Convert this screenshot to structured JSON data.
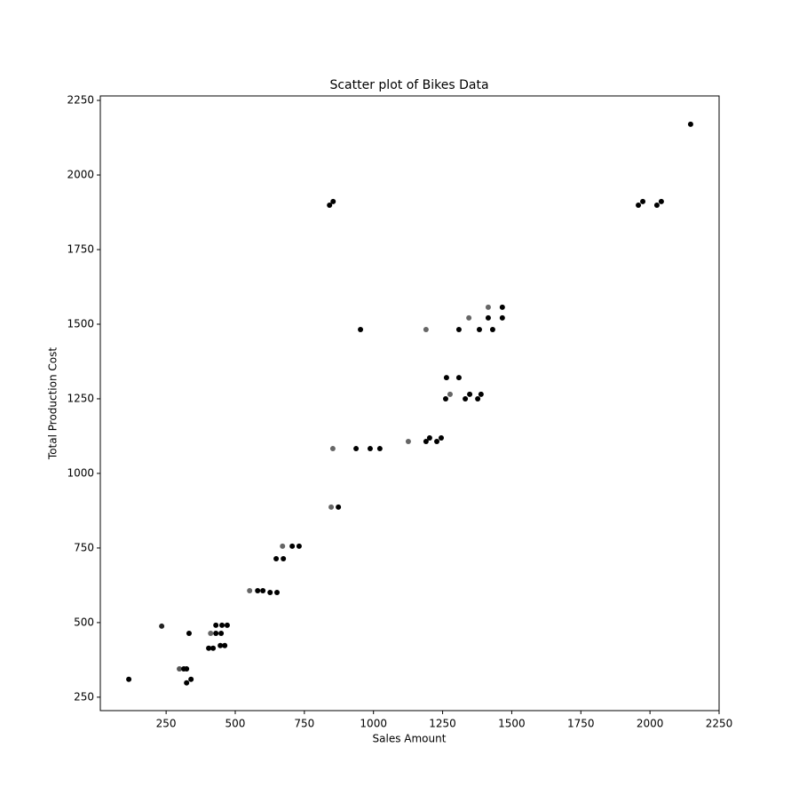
{
  "chart_data": {
    "type": "scatter",
    "title": "Scatter plot of Bikes Data",
    "x_label": "Sales Amount",
    "y_label": "Total Production Cost",
    "xlim": [
      12,
      2250
    ],
    "ylim": [
      205,
      2265
    ],
    "xticks": [
      250,
      500,
      750,
      1000,
      1250,
      1500,
      1750,
      2000,
      2250
    ],
    "yticks": [
      250,
      500,
      750,
      1000,
      1250,
      1500,
      1750,
      2000,
      2250
    ],
    "grid": false,
    "x": [
      115,
      234,
      298,
      314,
      324,
      324,
      340,
      333,
      411,
      430,
      449,
      430,
      452,
      471,
      404,
      420,
      446,
      462,
      552,
      581,
      600,
      626,
      651,
      648,
      674,
      671,
      706,
      731,
      847,
      873,
      853,
      937,
      988,
      1023,
      1126,
      1190,
      1203,
      1229,
      1245,
      1190,
      953,
      841,
      854,
      1264,
      1309,
      1261,
      1277,
      1332,
      1348,
      1377,
      1389,
      1309,
      1345,
      1383,
      1415,
      1415,
      1431,
      1466,
      1466,
      1958,
      1974,
      2025,
      2041,
      2147
    ],
    "values": [
      310,
      488,
      345,
      345,
      345,
      298,
      310,
      464,
      464,
      464,
      464,
      491,
      491,
      491,
      414,
      414,
      423,
      423,
      607,
      607,
      607,
      601,
      601,
      714,
      714,
      756,
      756,
      756,
      887,
      887,
      1083,
      1083,
      1083,
      1083,
      1107,
      1107,
      1119,
      1107,
      1119,
      1482,
      1482,
      1899,
      1911,
      1321,
      1321,
      1250,
      1265,
      1250,
      1265,
      1250,
      1265,
      1482,
      1521,
      1482,
      1521,
      1557,
      1482,
      1557,
      1521,
      1899,
      1911,
      1899,
      1911,
      2170
    ],
    "colors": [
      "#000000",
      "#222222",
      "#555555",
      "#000000",
      "#000000",
      "#000000",
      "#000000",
      "#000000",
      "#666666",
      "#000000",
      "#000000",
      "#000000",
      "#000000",
      "#000000",
      "#000000",
      "#000000",
      "#000000",
      "#000000",
      "#666666",
      "#000000",
      "#000000",
      "#000000",
      "#000000",
      "#000000",
      "#000000",
      "#666666",
      "#000000",
      "#000000",
      "#666666",
      "#000000",
      "#666666",
      "#000000",
      "#000000",
      "#000000",
      "#666666",
      "#000000",
      "#000000",
      "#000000",
      "#000000",
      "#666666",
      "#000000",
      "#000000",
      "#000000",
      "#000000",
      "#000000",
      "#000000",
      "#666666",
      "#000000",
      "#000000",
      "#000000",
      "#000000",
      "#000000",
      "#666666",
      "#000000",
      "#000000",
      "#666666",
      "#000000",
      "#000000",
      "#000000",
      "#000000",
      "#000000",
      "#000000",
      "#000000",
      "#000000"
    ]
  }
}
